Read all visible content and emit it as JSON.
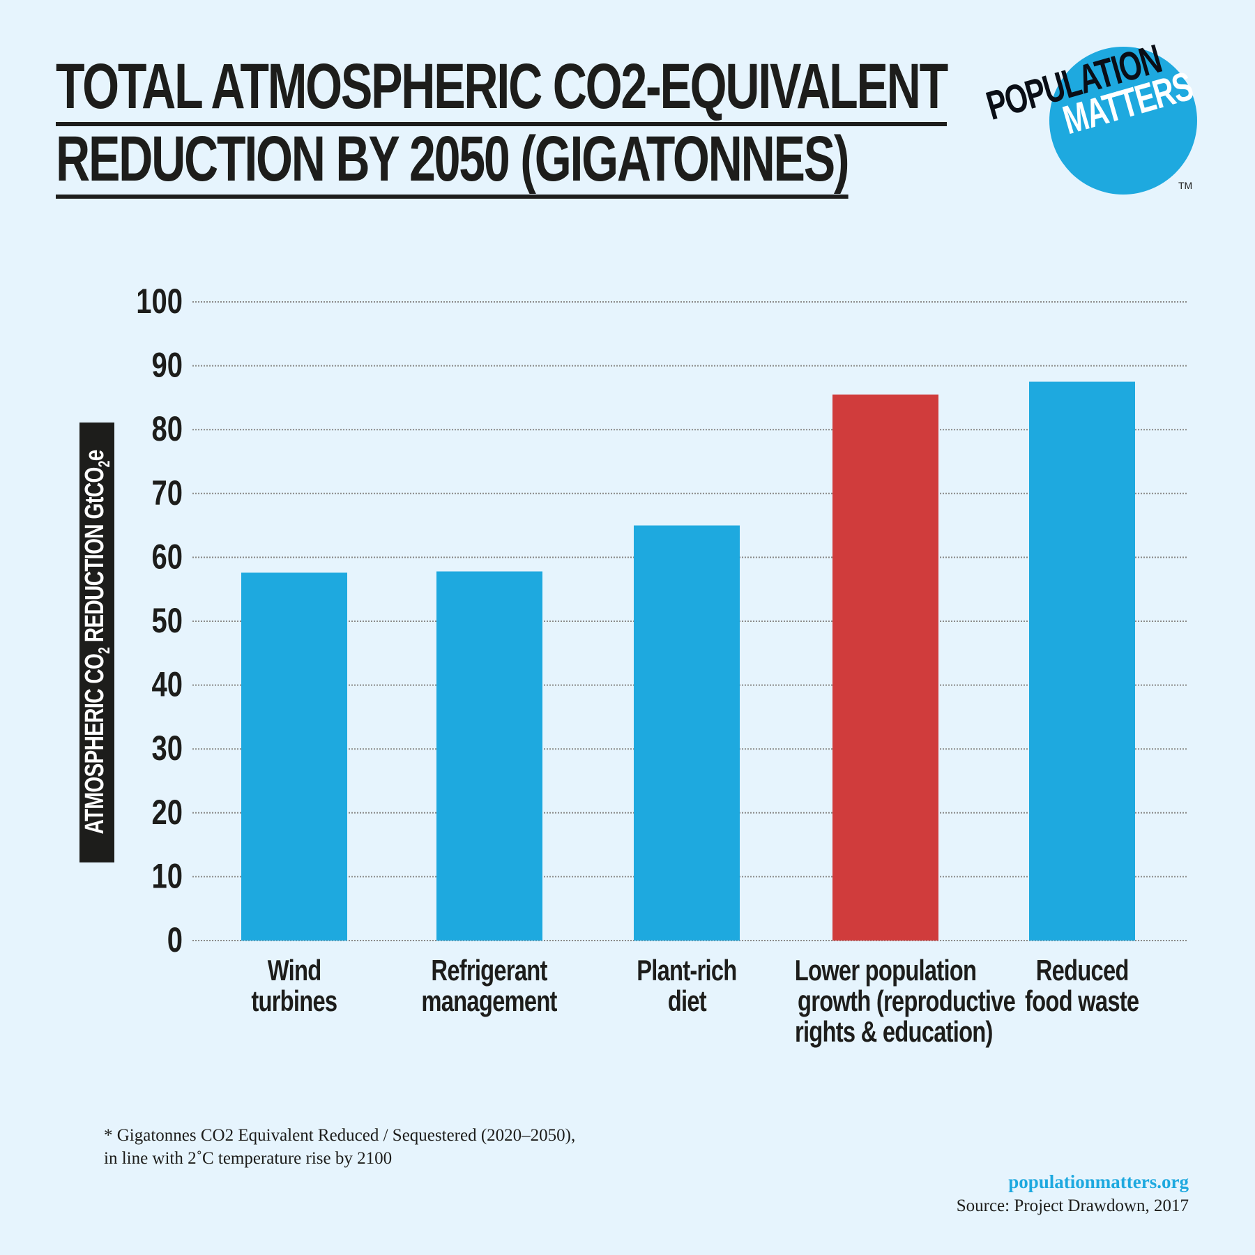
{
  "title_lines": [
    "TOTAL ATMOSPHERIC CO2-EQUIVALENT",
    "REDUCTION BY 2050 (GIGATONNES)"
  ],
  "logo": {
    "line1": "POPULATION",
    "line2": "MATTERS",
    "tm": "TM"
  },
  "footnote": [
    "* Gigatonnes CO2 Equivalent Reduced / Sequestered (2020–2050),",
    "in line with 2˚C temperature rise by 2100"
  ],
  "website": "populationmatters.org",
  "source": "Source: Project Drawdown, 2017",
  "colors": {
    "background": "#e6f4fd",
    "bar": "#1ea9df",
    "highlight": "#d03c3c",
    "text": "#1d1d1b"
  },
  "chart_data": {
    "type": "bar",
    "title": "TOTAL ATMOSPHERIC CO2-EQUIVALENT REDUCTION BY 2050 (GIGATONNES)",
    "ylabel": {
      "pre": "ATMOSPHERIC CO",
      "sub1": "2",
      "mid": " REDUCTION GtCO",
      "sub2": "2",
      "post": "e"
    },
    "xlabel": "",
    "ylim": [
      0,
      100
    ],
    "yticks": [
      "0",
      "10",
      "20",
      "30",
      "40",
      "50",
      "60",
      "70",
      "80",
      "90",
      "100"
    ],
    "grid": true,
    "categories": [
      [
        "Wind",
        "turbines"
      ],
      [
        "Refrigerant",
        "management"
      ],
      [
        "Plant-rich",
        "diet"
      ],
      [
        "Lower population",
        "growth (reproductive",
        "rights & education)"
      ],
      [
        "Reduced",
        "food waste"
      ]
    ],
    "values": [
      57.6,
      57.8,
      65.0,
      85.5,
      87.5
    ],
    "highlight_index": 3
  }
}
